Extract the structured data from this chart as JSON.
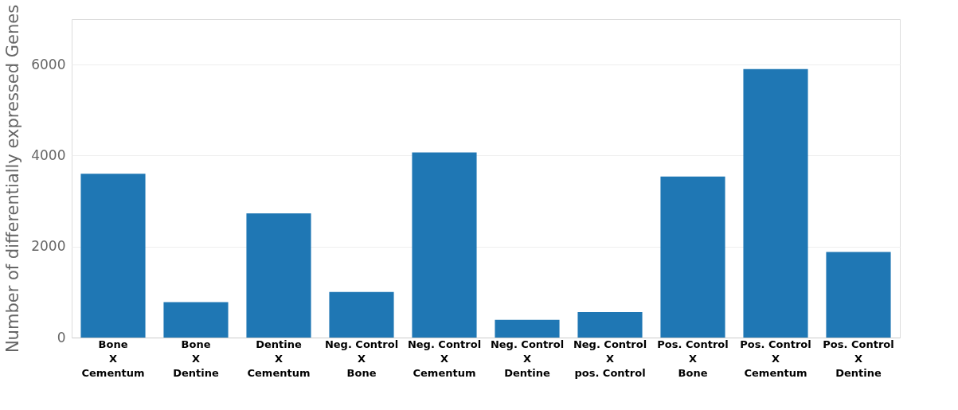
{
  "chart_data": {
    "type": "bar",
    "ylabel": "Number of differentially expressed Genes",
    "categories": [
      "Bone\nX\nCementum",
      "Bone\nX\nDentine",
      "Dentine\nX\nCementum",
      "Neg. Control\nX\nBone",
      "Neg. Control\nX\nCementum",
      "Neg. Control\nX\nDentine",
      "Neg. Control\nX\npos. Control",
      "Pos. Control\nX\nBone",
      "Pos. Control\nX\nCementum",
      "Pos. Control\nX\nDentine"
    ],
    "values": [
      3600,
      780,
      2730,
      1000,
      4070,
      390,
      560,
      3540,
      5900,
      1880
    ],
    "color": "#1f77b4",
    "ylim": [
      0,
      7000
    ],
    "yticks": [
      0,
      2000,
      4000,
      6000
    ],
    "grid": "y"
  }
}
